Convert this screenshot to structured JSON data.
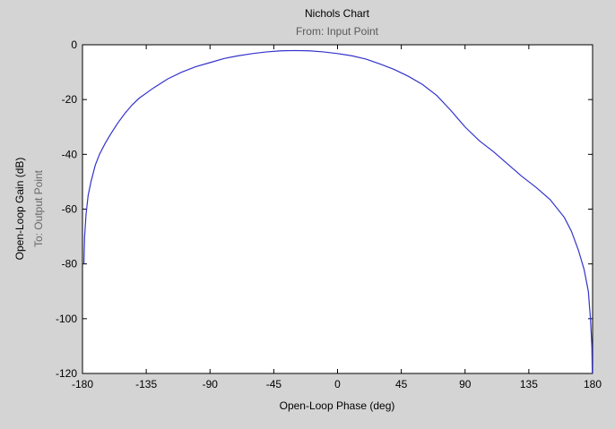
{
  "chart_data": {
    "type": "line",
    "title": "Nichols Chart",
    "subtitle": "From: Input Point",
    "xlabel": "Open-Loop Phase (deg)",
    "ylabel": "Open-Loop Gain (dB)",
    "ylabel_secondary": "To: Output Point",
    "xlim": [
      -180,
      180
    ],
    "ylim": [
      -120,
      0
    ],
    "xticks": [
      -180,
      -135,
      -90,
      -45,
      0,
      45,
      90,
      135,
      180
    ],
    "yticks": [
      0,
      -20,
      -40,
      -60,
      -80,
      -100,
      -120
    ],
    "grid": false,
    "series_color": "#3333cc",
    "series": [
      {
        "x": [
          -179,
          -178.5,
          -177.5,
          -176,
          -174,
          -171,
          -168,
          -164,
          -160,
          -155,
          -150,
          -145,
          -140,
          -130,
          -120,
          -110,
          -100,
          -90,
          -80,
          -70,
          -60,
          -50,
          -40,
          -30,
          -20,
          -10,
          0,
          10,
          20,
          30,
          40,
          50,
          60,
          70,
          80,
          90,
          100,
          110,
          120,
          130,
          140,
          150,
          160,
          165,
          170,
          174,
          177,
          178.5,
          179.5,
          179.8
        ],
        "y": [
          -80,
          -70,
          -62,
          -55,
          -50,
          -44,
          -40,
          -36,
          -32.5,
          -28.5,
          -25,
          -22,
          -19.5,
          -15.8,
          -12.5,
          -10,
          -8,
          -6.5,
          -5,
          -4,
          -3.2,
          -2.6,
          -2.2,
          -2.1,
          -2.2,
          -2.6,
          -3.2,
          -4,
          -5.2,
          -7,
          -9,
          -11.5,
          -14.5,
          -18.5,
          -24,
          -30,
          -35,
          -39,
          -43.5,
          -48,
          -52,
          -56.5,
          -63,
          -68,
          -75,
          -82,
          -90,
          -100,
          -110,
          -120
        ]
      }
    ]
  }
}
